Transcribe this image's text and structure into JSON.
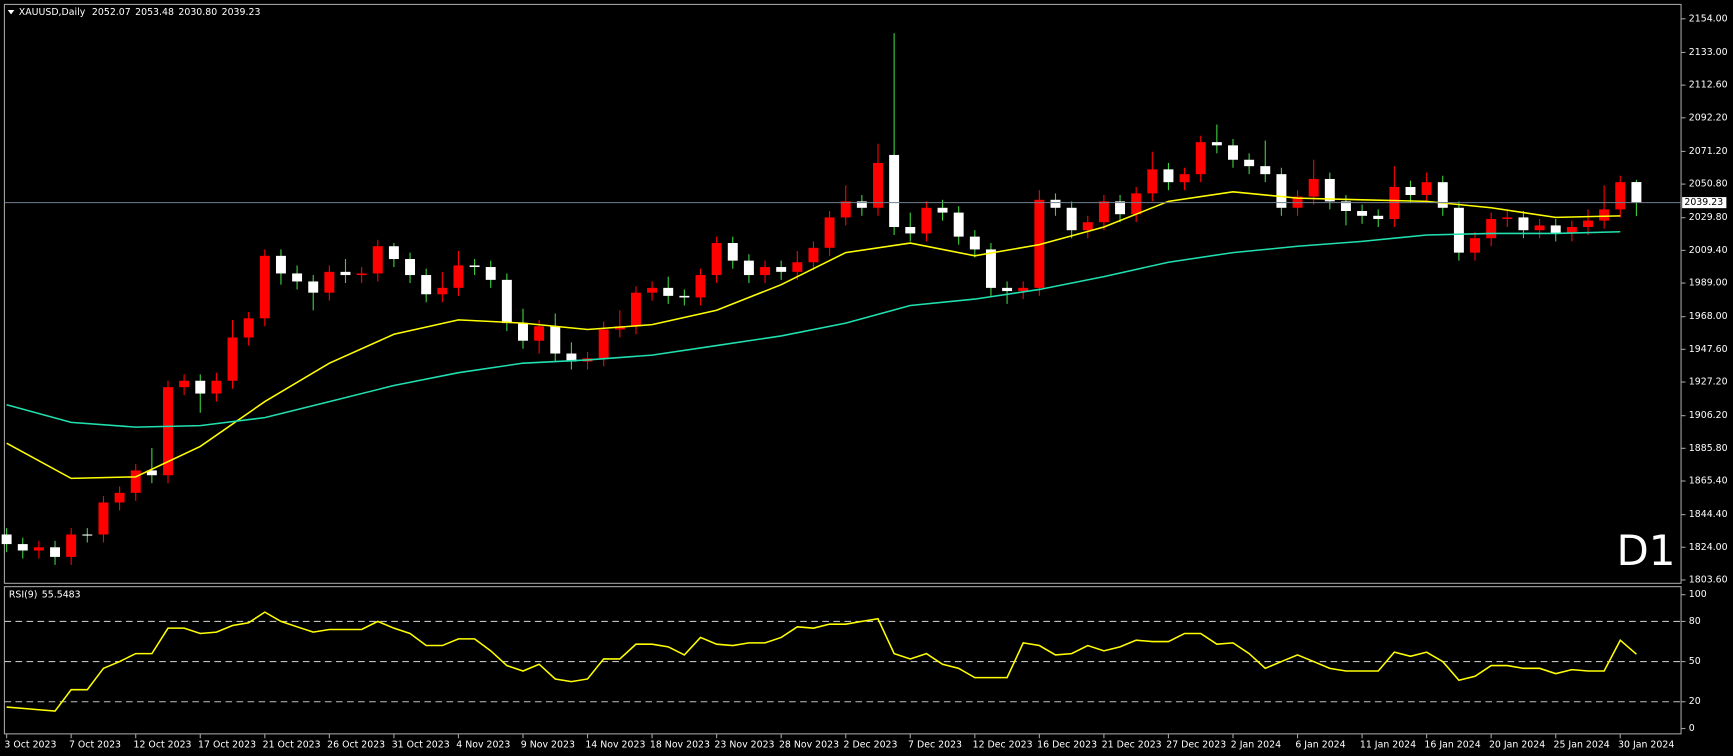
{
  "chart_data": [
    {
      "type": "candlestick",
      "title": "XAUUSD,Daily",
      "header_values": [
        "2052.07",
        "2053.48",
        "2030.80",
        "2039.23"
      ],
      "categories": [
        "3 Oct 2023",
        null,
        null,
        null,
        "7 Oct 2023",
        null,
        null,
        null,
        "12 Oct 2023",
        null,
        null,
        null,
        "17 Oct 2023",
        null,
        null,
        null,
        "21 Oct 2023",
        null,
        null,
        null,
        "26 Oct 2023",
        null,
        null,
        null,
        "31 Oct 2023",
        null,
        null,
        null,
        "4 Nov 2023",
        null,
        null,
        null,
        "9 Nov 2023",
        null,
        null,
        null,
        "14 Nov 2023",
        null,
        null,
        null,
        "18 Nov 2023",
        null,
        null,
        null,
        "23 Nov 2023",
        null,
        null,
        null,
        "28 Nov 2023",
        null,
        null,
        null,
        "2 Dec 2023",
        null,
        null,
        null,
        "7 Dec 2023",
        null,
        null,
        null,
        "12 Dec 2023",
        null,
        null,
        null,
        "16 Dec 2023",
        null,
        null,
        null,
        "21 Dec 2023",
        null,
        null,
        null,
        "27 Dec 2023",
        null,
        null,
        null,
        "2 Jan 2024",
        null,
        null,
        null,
        "6 Jan 2024",
        null,
        null,
        null,
        "11 Jan 2024",
        null,
        null,
        null,
        "16 Jan 2024",
        null,
        null,
        null,
        "20 Jan 2024",
        null,
        null,
        null,
        "25 Jan 2024",
        null,
        null,
        null,
        "30 Jan 2024",
        null
      ],
      "open": [
        1832,
        1826,
        1822,
        1824,
        1818,
        1832,
        1832,
        1852,
        1858,
        1872,
        1869,
        1924,
        1928,
        1920,
        1928,
        1955,
        1967,
        2006,
        1995,
        1990,
        1983,
        1996,
        1994,
        1995,
        2012,
        2004,
        1994,
        1982,
        1986,
        2000,
        1999,
        1991,
        1964,
        1953,
        1962,
        1945,
        1940,
        1942,
        1960,
        1962,
        1983,
        1986,
        1981,
        1980,
        1994,
        2014,
        2003,
        1994,
        1999,
        1996,
        2002,
        2011,
        2030,
        2040,
        2036,
        2069,
        2024,
        2020,
        2036,
        2033,
        2018,
        2010,
        1986,
        1984,
        1986,
        2041,
        2036,
        2022,
        2027,
        2040,
        2032,
        2045,
        2060,
        2052,
        2057,
        2077,
        2075,
        2066,
        2062,
        2057,
        2036,
        2043,
        2054,
        2040,
        2034,
        2031,
        2029,
        2049,
        2044,
        2052,
        2036,
        2008,
        2017,
        2029,
        2030,
        2022,
        2025,
        2020,
        2024,
        2028,
        2035,
        2052.07
      ],
      "high": [
        1836,
        1830,
        1828,
        1828,
        1836,
        1836,
        1856,
        1862,
        1876,
        1886,
        1928,
        1932,
        1932,
        1933,
        1966,
        1971,
        2010,
        2010,
        2000,
        1994,
        2000,
        2004,
        1999,
        2016,
        2014,
        2008,
        1998,
        1996,
        2009,
        2004,
        2003,
        1995,
        1973,
        1966,
        1970,
        1952,
        1946,
        1965,
        1972,
        1987,
        1990,
        1993,
        1985,
        1998,
        2018,
        2018,
        2007,
        2003,
        2003,
        2009,
        2015,
        2034,
        2050,
        2044,
        2076,
        2145,
        2033,
        2040,
        2041,
        2037,
        2022,
        2014,
        1990,
        1990,
        2047,
        2045,
        2040,
        2031,
        2044,
        2044,
        2049,
        2071,
        2064,
        2061,
        2081,
        2088,
        2079,
        2070,
        2078,
        2061,
        2047,
        2066,
        2058,
        2044,
        2038,
        2035,
        2062,
        2053,
        2058,
        2056,
        2040,
        2021,
        2033,
        2034,
        2034,
        2029,
        2029,
        2028,
        2035,
        2050,
        2056,
        2053.48
      ],
      "low": [
        1821,
        1817,
        1817,
        1813,
        1813,
        1827,
        1827,
        1847,
        1853,
        1864,
        1864,
        1919,
        1908,
        1915,
        1923,
        1950,
        1962,
        1988,
        1985,
        1972,
        1978,
        1989,
        1989,
        1990,
        1999,
        1989,
        1977,
        1977,
        1981,
        1994,
        1986,
        1959,
        1948,
        1945,
        1940,
        1935,
        1935,
        1937,
        1955,
        1957,
        1978,
        1976,
        1975,
        1975,
        1989,
        1998,
        1989,
        1989,
        1991,
        1991,
        1997,
        2006,
        2025,
        2031,
        2031,
        2019,
        2015,
        2015,
        2028,
        2013,
        2005,
        1981,
        1976,
        1979,
        1981,
        2031,
        2017,
        2017,
        2022,
        2027,
        2027,
        2040,
        2047,
        2047,
        2052,
        2070,
        2061,
        2057,
        2052,
        2031,
        2031,
        2038,
        2035,
        2025,
        2026,
        2024,
        2024,
        2039,
        2039,
        2031,
        2003,
        2003,
        2012,
        2024,
        2017,
        2017,
        2015,
        2015,
        2019,
        2023,
        2030,
        2030.8
      ],
      "close": [
        1826,
        1822,
        1824,
        1818,
        1832,
        1832,
        1852,
        1858,
        1872,
        1869,
        1924,
        1928,
        1920,
        1928,
        1955,
        1967,
        2006,
        1995,
        1990,
        1983,
        1996,
        1994,
        1995,
        2012,
        2004,
        1994,
        1982,
        1986,
        2000,
        1999,
        1991,
        1964,
        1953,
        1962,
        1945,
        1940,
        1942,
        1960,
        1962,
        1983,
        1986,
        1981,
        1980,
        1994,
        2014,
        2003,
        1994,
        1999,
        1996,
        2002,
        2011,
        2030,
        2040,
        2036,
        2064,
        2024,
        2020,
        2036,
        2033,
        2018,
        2010,
        1986,
        1984,
        1986,
        2041,
        2036,
        2022,
        2027,
        2040,
        2032,
        2045,
        2060,
        2052,
        2057,
        2077,
        2075,
        2066,
        2062,
        2057,
        2036,
        2043,
        2054,
        2040,
        2034,
        2031,
        2029,
        2049,
        2044,
        2052,
        2036,
        2008,
        2017,
        2029,
        2030,
        2022,
        2025,
        2020,
        2024,
        2028,
        2035,
        2052,
        2039.23
      ],
      "up_color": "#ff0000",
      "down_color": "#ffffff",
      "lines": [
        {
          "color": "#ffff00",
          "x": [
            "3 Oct 2023",
            "7 Oct 2023",
            "12 Oct 2023",
            "17 Oct 2023",
            "21 Oct 2023",
            "26 Oct 2023",
            "31 Oct 2023",
            "4 Nov 2023",
            "9 Nov 2023",
            "14 Nov 2023",
            "18 Nov 2023",
            "23 Nov 2023",
            "28 Nov 2023",
            "2 Dec 2023",
            "7 Dec 2023",
            "12 Dec 2023",
            "16 Dec 2023",
            "21 Dec 2023",
            "27 Dec 2023",
            "2 Jan 2024",
            "6 Jan 2024",
            "11 Jan 2024",
            "16 Jan 2024",
            "20 Jan 2024",
            "25 Jan 2024",
            "30 Jan 2024"
          ],
          "values": [
            1889,
            1867,
            1868,
            1887,
            1915,
            1939,
            1957,
            1966,
            1964,
            1960,
            1963,
            1972,
            1988,
            2008,
            2014,
            2006,
            2013,
            2024,
            2040,
            2046,
            2042,
            2041,
            2040,
            2036,
            2030,
            2031
          ]
        },
        {
          "color": "#20e0b0",
          "x": [
            "3 Oct 2023",
            "7 Oct 2023",
            "12 Oct 2023",
            "17 Oct 2023",
            "21 Oct 2023",
            "26 Oct 2023",
            "31 Oct 2023",
            "4 Nov 2023",
            "9 Nov 2023",
            "14 Nov 2023",
            "18 Nov 2023",
            "23 Nov 2023",
            "28 Nov 2023",
            "2 Dec 2023",
            "7 Dec 2023",
            "12 Dec 2023",
            "16 Dec 2023",
            "21 Dec 2023",
            "27 Dec 2023",
            "2 Jan 2024",
            "6 Jan 2024",
            "11 Jan 2024",
            "16 Jan 2024",
            "20 Jan 2024",
            "25 Jan 2024",
            "30 Jan 2024"
          ],
          "values": [
            1913,
            1902,
            1899,
            1900,
            1905,
            1915,
            1925,
            1933,
            1939,
            1941,
            1944,
            1950,
            1956,
            1964,
            1975,
            1979,
            1985,
            1993,
            2002,
            2008,
            2012,
            2015,
            2019,
            2020,
            2020,
            2021
          ]
        }
      ],
      "ylim": [
        1801.5,
        2162.3
      ],
      "yticks": [
        {
          "value": 2154,
          "label": "2154.00"
        },
        {
          "value": 2133,
          "label": "2133.00"
        },
        {
          "value": 2112.6,
          "label": "2112.60"
        },
        {
          "value": 2092.2,
          "label": "2092.20"
        },
        {
          "value": 2071.2,
          "label": "2071.20"
        },
        {
          "value": 2050.8,
          "label": "2050.80"
        },
        {
          "value": 2029.8,
          "label": "2029.80"
        },
        {
          "value": 2009.4,
          "label": "2009.40"
        },
        {
          "value": 1989,
          "label": "1989.00"
        },
        {
          "value": 1968,
          "label": "1968.00"
        },
        {
          "value": 1947.6,
          "label": "1947.60"
        },
        {
          "value": 1927.2,
          "label": "1927.20"
        },
        {
          "value": 1906.2,
          "label": "1906.20"
        },
        {
          "value": 1885.8,
          "label": "1885.80"
        },
        {
          "value": 1865.4,
          "label": "1865.40"
        },
        {
          "value": 1844.4,
          "label": "1844.40"
        },
        {
          "value": 1824,
          "label": "1824.00"
        },
        {
          "value": 1803.6,
          "label": "1803.60"
        }
      ],
      "annotation": "D1",
      "annotation_color": "#e00000"
    },
    {
      "type": "line",
      "title": "RSI(9)",
      "series": [
        {
          "color": "#ffff00",
          "values": [
            16,
            15,
            14,
            13,
            29,
            29,
            45,
            50,
            56,
            56,
            75,
            75,
            71,
            72,
            77,
            79,
            87,
            80,
            76,
            72,
            74,
            74,
            74,
            80,
            75,
            71,
            62,
            62,
            67,
            67,
            58,
            47,
            43,
            48,
            37,
            35,
            37,
            52,
            52,
            63,
            63,
            61,
            55,
            68,
            63,
            62,
            64,
            64,
            68,
            76,
            75,
            78,
            78,
            80,
            82,
            56,
            52,
            56,
            48,
            45,
            38,
            38,
            38,
            64,
            62,
            55,
            56,
            62,
            58,
            61,
            66,
            65,
            65,
            71,
            71,
            63,
            64,
            56,
            45,
            50,
            55,
            50,
            45,
            43,
            43,
            43,
            57,
            54,
            57,
            50,
            36,
            39,
            47,
            47,
            45,
            45,
            41,
            44,
            43,
            43,
            66,
            55.5483
          ]
        }
      ],
      "ylim": [
        -4,
        106
      ],
      "yticks": [
        0,
        20,
        50,
        80,
        100
      ]
    }
  ]
}
